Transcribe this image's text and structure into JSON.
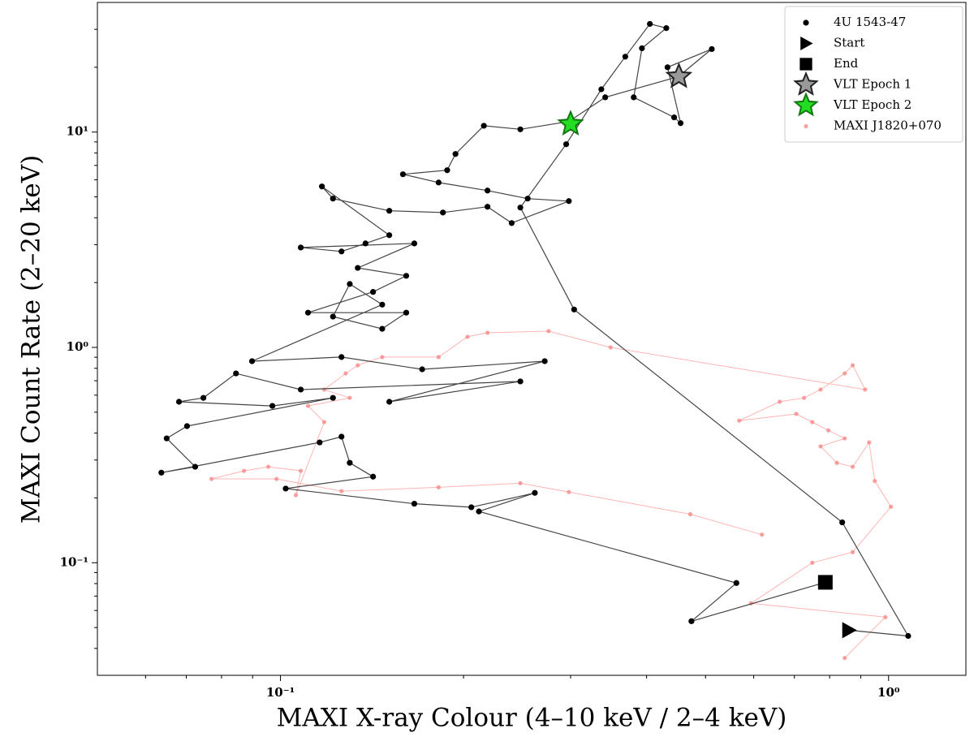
{
  "chart_data": {
    "type": "scatter",
    "xlabel": "MAXI X-ray Colour (4–10 keV / 2–4 keV)",
    "ylabel": "MAXI Count Rate (2–20 keV)",
    "xscale": "log",
    "yscale": "log",
    "xlim": [
      0.05,
      1.34
    ],
    "ylim": [
      0.03,
      40
    ],
    "xticks": [
      {
        "value": 0.1,
        "label": "10⁻¹"
      },
      {
        "value": 1,
        "label": "10⁰"
      }
    ],
    "yticks": [
      {
        "value": 0.1,
        "label": "10⁻¹"
      },
      {
        "value": 1,
        "label": "10⁰"
      },
      {
        "value": 10,
        "label": "10¹"
      }
    ],
    "xminorticks": [
      0.06,
      0.07,
      0.08,
      0.09,
      0.2,
      0.3,
      0.4,
      0.5,
      0.6,
      0.7,
      0.8,
      0.9
    ],
    "yminorticks": [
      0.04,
      0.05,
      0.06,
      0.07,
      0.08,
      0.09,
      0.2,
      0.3,
      0.4,
      0.5,
      0.6,
      0.7,
      0.8,
      0.9,
      2,
      3,
      4,
      5,
      6,
      7,
      8,
      9,
      20,
      30
    ],
    "legend": "upper right",
    "series": [
      {
        "name": "MAXI J1820+070",
        "color": "#f58a8a",
        "line_color": "#ffb4b4",
        "marker": "circle",
        "size": 2.6,
        "connect": true,
        "x": [
          0.847,
          0.988,
          0.594,
          0.749,
          0.873,
          1.009,
          0.949,
          0.929,
          0.873,
          0.822,
          0.773,
          0.847,
          0.796,
          0.749,
          0.705,
          0.568,
          0.662,
          0.726,
          0.773,
          0.847,
          0.873,
          0.915,
          0.349,
          0.276,
          0.219,
          0.203,
          0.182,
          0.147,
          0.134,
          0.128,
          0.118,
          0.13,
          0.111,
          0.118,
          0.106,
          0.108,
          0.0955,
          0.0871,
          0.077,
          0.0985,
          0.126,
          0.182,
          0.248,
          0.298,
          0.472,
          0.619
        ],
        "y": [
          0.0361,
          0.0559,
          0.0648,
          0.1,
          0.112,
          0.182,
          0.24,
          0.362,
          0.279,
          0.291,
          0.347,
          0.378,
          0.412,
          0.45,
          0.491,
          0.457,
          0.559,
          0.583,
          0.637,
          0.757,
          0.826,
          0.637,
          1.0,
          1.19,
          1.17,
          1.12,
          0.902,
          0.902,
          0.826,
          0.757,
          0.637,
          0.583,
          0.535,
          0.45,
          0.206,
          0.267,
          0.279,
          0.267,
          0.245,
          0.245,
          0.215,
          0.224,
          0.234,
          0.213,
          0.168,
          0.135
        ]
      },
      {
        "name": "4U 1543-47",
        "color": "#000000",
        "line_color": "#444444",
        "marker": "circle",
        "size": 3.6,
        "connect": true,
        "x": [
          0.86,
          1.077,
          0.839,
          0.304,
          0.248,
          0.295,
          0.337,
          0.369,
          0.405,
          0.431,
          0.393,
          0.381,
          0.444,
          0.455,
          0.433,
          0.512,
          0.451,
          0.342,
          0.298,
          0.248,
          0.216,
          0.194,
          0.188,
          0.159,
          0.182,
          0.219,
          0.255,
          0.298,
          0.24,
          0.219,
          0.185,
          0.151,
          0.122,
          0.117,
          0.151,
          0.138,
          0.126,
          0.108,
          0.166,
          0.134,
          0.161,
          0.142,
          0.111,
          0.161,
          0.147,
          0.122,
          0.13,
          0.147,
          0.0898,
          0.126,
          0.171,
          0.272,
          0.151,
          0.248,
          0.108,
          0.0845,
          0.0747,
          0.0681,
          0.097,
          0.122,
          0.0702,
          0.065,
          0.0724,
          0.0637,
          0.116,
          0.126,
          0.13,
          0.142,
          0.102,
          0.166,
          0.206,
          0.262,
          0.212,
          0.562,
          0.474,
          0.787
        ],
        "y": [
          0.0486,
          0.0457,
          0.154,
          1.5,
          4.46,
          8.78,
          15.8,
          22.4,
          31.8,
          30.4,
          24.5,
          14.5,
          11.7,
          11.0,
          20.0,
          24.3,
          18.1,
          14.5,
          11.2,
          10.3,
          10.7,
          7.91,
          6.65,
          6.37,
          5.83,
          5.35,
          4.91,
          4.78,
          3.78,
          4.5,
          4.23,
          4.31,
          4.91,
          5.59,
          3.32,
          3.04,
          2.79,
          2.91,
          3.04,
          2.34,
          2.15,
          1.81,
          1.45,
          1.45,
          1.22,
          1.39,
          1.97,
          1.58,
          0.863,
          0.902,
          0.791,
          0.863,
          0.559,
          0.695,
          0.637,
          0.757,
          0.583,
          0.559,
          0.535,
          0.583,
          0.431,
          0.378,
          0.279,
          0.262,
          0.362,
          0.385,
          0.291,
          0.251,
          0.221,
          0.188,
          0.181,
          0.211,
          0.173,
          0.0805,
          0.0535,
          0.0811
        ]
      },
      {
        "name": "Start",
        "color": "#000000",
        "marker": "triangle",
        "size": 10,
        "x": [
          0.86
        ],
        "y": [
          0.0486
        ]
      },
      {
        "name": "End",
        "color": "#000000",
        "marker": "square",
        "size": 9,
        "x": [
          0.787
        ],
        "y": [
          0.0811
        ]
      },
      {
        "name": "VLT Epoch 1",
        "color": "#999999",
        "edge": "#222222",
        "marker": "star",
        "size": 15,
        "x": [
          0.452
        ],
        "y": [
          18.1
        ]
      },
      {
        "name": "VLT Epoch 2",
        "color": "#22dd22",
        "edge": "#117711",
        "marker": "star",
        "size": 15,
        "x": [
          0.3
        ],
        "y": [
          10.9
        ]
      }
    ],
    "legend_order": [
      1,
      2,
      3,
      4,
      5,
      0
    ]
  }
}
